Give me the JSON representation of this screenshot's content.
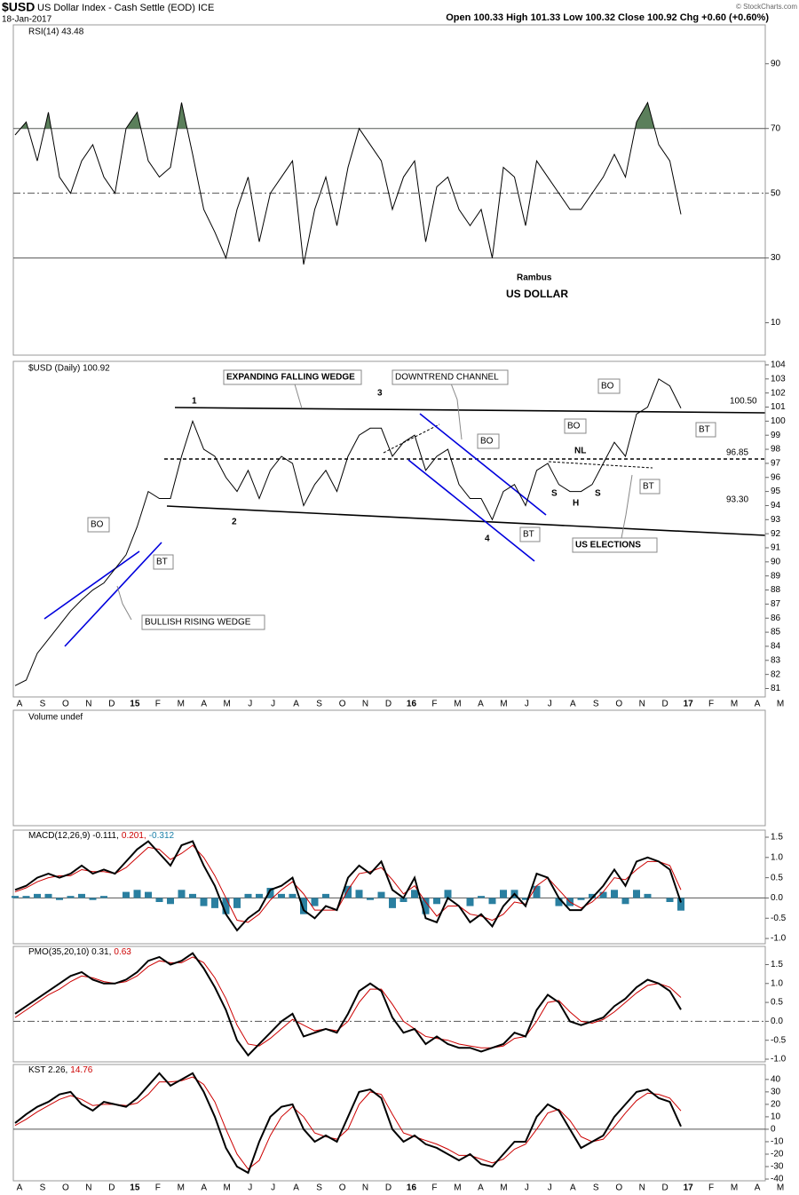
{
  "header": {
    "symbol": "$USD",
    "name": "US Dollar Index - Cash Settle (EOD) ICE",
    "date": "18-Jan-2017",
    "quote": "Open 100.33 High 101.33 Low 100.32 Close 100.92 Chg +0.60 (+0.60%)",
    "credit": "© StockCharts.com"
  },
  "x_axis_labels": [
    "A",
    "S",
    "O",
    "N",
    "D",
    "15",
    "F",
    "M",
    "A",
    "M",
    "J",
    "J",
    "A",
    "S",
    "O",
    "N",
    "D",
    "16",
    "F",
    "M",
    "A",
    "M",
    "J",
    "J",
    "A",
    "S",
    "O",
    "N",
    "D",
    "17",
    "F",
    "M",
    "A",
    "M"
  ],
  "chart_data": [
    {
      "type": "line",
      "title": "RSI(14) 43.48",
      "ylim": [
        0,
        102
      ],
      "yticks": [
        90,
        70,
        50,
        30,
        10
      ],
      "ref_lines": [
        {
          "value": 70,
          "style": "solid"
        },
        {
          "value": 50,
          "style": "dashdot"
        },
        {
          "value": 30,
          "style": "solid"
        }
      ],
      "fill_above": 70,
      "fill_color": "#5b7f5b",
      "annotations": [
        "Rambus",
        "US DOLLAR"
      ],
      "series": [
        {
          "color": "#000000",
          "values": [
            68,
            72,
            60,
            75,
            55,
            50,
            60,
            65,
            55,
            50,
            70,
            75,
            60,
            55,
            58,
            78,
            62,
            45,
            38,
            30,
            45,
            55,
            35,
            50,
            55,
            60,
            28,
            45,
            55,
            40,
            58,
            70,
            65,
            60,
            45,
            55,
            60,
            35,
            52,
            55,
            45,
            40,
            45,
            30,
            58,
            55,
            40,
            60,
            55,
            50,
            45,
            45,
            50,
            55,
            62,
            55,
            72,
            78,
            65,
            60,
            43.48
          ]
        }
      ]
    },
    {
      "type": "line",
      "title": "$USD (Daily) 100.92",
      "ylim": [
        80.4,
        104.25
      ],
      "yticks": [
        81,
        82,
        83,
        84,
        85,
        86,
        87,
        88,
        89,
        90,
        91,
        92,
        93,
        94,
        95,
        96,
        97,
        98,
        99,
        100,
        101,
        102,
        103,
        104
      ],
      "annotations": [
        "1",
        "2",
        "3",
        "4",
        "EXPANDING FALLING WEDGE",
        "DOWNTREND CHANNEL",
        "BULLISH RISING WEDGE",
        "US ELECTIONS",
        "BO",
        "BO",
        "BO",
        "BO",
        "BT",
        "BT",
        "BT",
        "BT",
        "NL",
        "S",
        "H",
        "S",
        "100.50",
        "96.85",
        "93.30"
      ],
      "series": [
        {
          "color": "#000000",
          "values": [
            81.2,
            81.6,
            83.5,
            84.5,
            85.5,
            86.5,
            87.3,
            88,
            88.5,
            89.5,
            90.5,
            92.5,
            95,
            94.5,
            94.5,
            97.5,
            100,
            98,
            97.5,
            96,
            95,
            96.5,
            94.5,
            96.5,
            97.5,
            97,
            94,
            95.5,
            96.5,
            95,
            97.5,
            99,
            99.5,
            99.5,
            97.5,
            98.5,
            99,
            96.5,
            97.5,
            98,
            95.5,
            94.5,
            94.5,
            93,
            95,
            95.5,
            94,
            96.5,
            97,
            95.5,
            95,
            95,
            95.5,
            97,
            98.5,
            97.5,
            100.5,
            101,
            103,
            102.5,
            100.92
          ]
        }
      ]
    },
    {
      "type": "empty",
      "title": "Volume undef"
    },
    {
      "type": "line",
      "legend": [
        {
          "text": "MACD(12,26,9) -0.111,",
          "color": "#000000"
        },
        {
          "text": "0.201,",
          "color": "#cc0000"
        },
        {
          "text": "-0.312",
          "color": "#1a7fa8"
        }
      ],
      "ylim": [
        -1.13,
        1.675
      ],
      "yticks": [
        1.5,
        {
          "value": 1,
          "label": "1.0"
        },
        0.5,
        {
          "value": 0,
          "label": "0.0"
        },
        -0.5,
        {
          "value": -1,
          "label": "-1.0"
        }
      ],
      "ref_lines": [
        {
          "value": 0,
          "style": "solid"
        }
      ],
      "series": [
        {
          "kind": "bar",
          "color": "#2a7fa0",
          "values": [
            0.05,
            0.05,
            0.1,
            0.1,
            -0.05,
            0.05,
            0.1,
            -0.05,
            0.05,
            0,
            0.15,
            0.2,
            0.15,
            -0.1,
            -0.15,
            0.2,
            0.1,
            -0.2,
            -0.25,
            -0.4,
            -0.25,
            0.1,
            0.1,
            0.25,
            0.1,
            0.1,
            -0.4,
            -0.2,
            0.1,
            0,
            0.3,
            0.2,
            -0.05,
            0.15,
            -0.25,
            -0.1,
            0.2,
            -0.4,
            -0.15,
            0.2,
            0,
            -0.2,
            0.05,
            -0.15,
            0.2,
            0.2,
            -0.05,
            0.3,
            0,
            -0.2,
            -0.2,
            -0.05,
            0.1,
            0.15,
            0.2,
            -0.15,
            0.2,
            0.1,
            0,
            -0.1,
            -0.312
          ]
        },
        {
          "color": "#cc0000",
          "values": [
            0.15,
            0.25,
            0.4,
            0.5,
            0.55,
            0.55,
            0.7,
            0.65,
            0.65,
            0.6,
            0.75,
            1.0,
            1.25,
            1.2,
            0.95,
            1.1,
            1.3,
            1.0,
            0.55,
            0.0,
            -0.55,
            -0.6,
            -0.4,
            -0.05,
            0.2,
            0.4,
            0.1,
            -0.3,
            -0.3,
            -0.3,
            0.2,
            0.6,
            0.65,
            0.75,
            0.45,
            0.1,
            0.3,
            -0.1,
            -0.45,
            -0.2,
            -0.2,
            -0.4,
            -0.45,
            -0.55,
            -0.4,
            -0.1,
            -0.15,
            0.3,
            0.5,
            0.2,
            -0.1,
            -0.25,
            -0.1,
            0.15,
            0.5,
            0.45,
            0.7,
            0.9,
            0.9,
            0.8,
            0.201
          ]
        },
        {
          "color": "#000000",
          "width": 2,
          "values": [
            0.2,
            0.3,
            0.5,
            0.6,
            0.5,
            0.6,
            0.8,
            0.6,
            0.7,
            0.6,
            0.9,
            1.2,
            1.4,
            1.1,
            0.8,
            1.3,
            1.4,
            0.8,
            0.3,
            -0.4,
            -0.8,
            -0.5,
            -0.3,
            0.2,
            0.3,
            0.5,
            -0.3,
            -0.5,
            -0.2,
            -0.3,
            0.5,
            0.8,
            0.6,
            0.9,
            0.2,
            0.0,
            0.5,
            -0.5,
            -0.6,
            0.0,
            -0.2,
            -0.6,
            -0.4,
            -0.7,
            -0.2,
            0.1,
            -0.2,
            0.6,
            0.5,
            0.0,
            -0.3,
            -0.3,
            0.0,
            0.3,
            0.7,
            0.3,
            0.9,
            1.0,
            0.9,
            0.7,
            -0.111
          ]
        }
      ]
    },
    {
      "type": "line",
      "legend": [
        {
          "text": "PMO(35,20,10) 0.31,",
          "color": "#000000"
        },
        {
          "text": "0.63",
          "color": "#cc0000"
        }
      ],
      "ylim": [
        -1.07,
        1.98
      ],
      "yticks": [
        1.5,
        {
          "value": 1,
          "label": "1.0"
        },
        0.5,
        {
          "value": 0,
          "label": "0.0"
        },
        -0.5,
        {
          "value": -1,
          "label": "-1.0"
        }
      ],
      "ref_lines": [
        {
          "value": 0,
          "style": "dashdot"
        }
      ],
      "series": [
        {
          "color": "#cc0000",
          "values": [
            0.1,
            0.3,
            0.5,
            0.7,
            0.85,
            1.05,
            1.2,
            1.15,
            1.05,
            1.0,
            1.05,
            1.2,
            1.45,
            1.6,
            1.55,
            1.55,
            1.7,
            1.55,
            1.15,
            0.6,
            -0.1,
            -0.6,
            -0.65,
            -0.45,
            -0.2,
            0.05,
            -0.1,
            -0.25,
            -0.2,
            -0.25,
            0.0,
            0.5,
            0.85,
            0.85,
            0.45,
            0.0,
            -0.2,
            -0.4,
            -0.45,
            -0.5,
            -0.6,
            -0.65,
            -0.7,
            -0.7,
            -0.65,
            -0.45,
            -0.4,
            0.0,
            0.5,
            0.55,
            0.25,
            0.0,
            -0.05,
            0.05,
            0.25,
            0.5,
            0.75,
            0.95,
            1.0,
            0.9,
            0.63
          ]
        },
        {
          "color": "#000000",
          "width": 2,
          "values": [
            0.2,
            0.4,
            0.6,
            0.8,
            1.0,
            1.2,
            1.3,
            1.1,
            1.0,
            1.0,
            1.1,
            1.3,
            1.6,
            1.7,
            1.5,
            1.6,
            1.8,
            1.4,
            0.9,
            0.3,
            -0.5,
            -0.9,
            -0.6,
            -0.3,
            0.0,
            0.2,
            -0.4,
            -0.3,
            -0.2,
            -0.3,
            0.2,
            0.8,
            1.0,
            0.8,
            0.1,
            -0.3,
            -0.2,
            -0.6,
            -0.4,
            -0.6,
            -0.7,
            -0.7,
            -0.8,
            -0.7,
            -0.6,
            -0.3,
            -0.4,
            0.3,
            0.7,
            0.5,
            0.0,
            -0.1,
            0.0,
            0.1,
            0.4,
            0.6,
            0.9,
            1.1,
            1.0,
            0.8,
            0.31
          ]
        }
      ]
    },
    {
      "type": "line",
      "legend": [
        {
          "text": "KST 2.26,",
          "color": "#000000"
        },
        {
          "text": "14.76",
          "color": "#cc0000"
        }
      ],
      "ylim": [
        -41.4,
        52
      ],
      "yticks": [
        40,
        30,
        20,
        10,
        0,
        -10,
        -20,
        -30,
        -40
      ],
      "ref_lines": [
        {
          "value": 0,
          "style": "solid"
        }
      ],
      "series": [
        {
          "color": "#cc0000",
          "values": [
            3,
            8,
            14,
            19,
            24,
            27,
            24,
            19,
            20,
            20,
            19,
            21,
            28,
            38,
            38,
            39,
            42,
            36,
            22,
            0,
            -20,
            -32,
            -25,
            -5,
            10,
            18,
            10,
            -3,
            -6,
            -8,
            0,
            20,
            30,
            28,
            12,
            -3,
            -6,
            -9,
            -12,
            -16,
            -21,
            -21,
            -24,
            -27,
            -24,
            -16,
            -12,
            0,
            13,
            16,
            7,
            -6,
            -10,
            -8,
            2,
            13,
            23,
            29,
            28,
            25,
            14.76
          ]
        },
        {
          "color": "#000000",
          "width": 2,
          "values": [
            5,
            12,
            18,
            22,
            28,
            30,
            20,
            15,
            22,
            20,
            18,
            25,
            35,
            45,
            35,
            40,
            45,
            30,
            10,
            -15,
            -30,
            -35,
            -10,
            10,
            18,
            20,
            0,
            -10,
            -5,
            -10,
            10,
            30,
            32,
            25,
            0,
            -10,
            -5,
            -12,
            -15,
            -20,
            -25,
            -20,
            -28,
            -30,
            -20,
            -10,
            -10,
            10,
            20,
            15,
            0,
            -15,
            -10,
            -5,
            10,
            20,
            30,
            32,
            25,
            22,
            2.26
          ]
        }
      ]
    }
  ]
}
